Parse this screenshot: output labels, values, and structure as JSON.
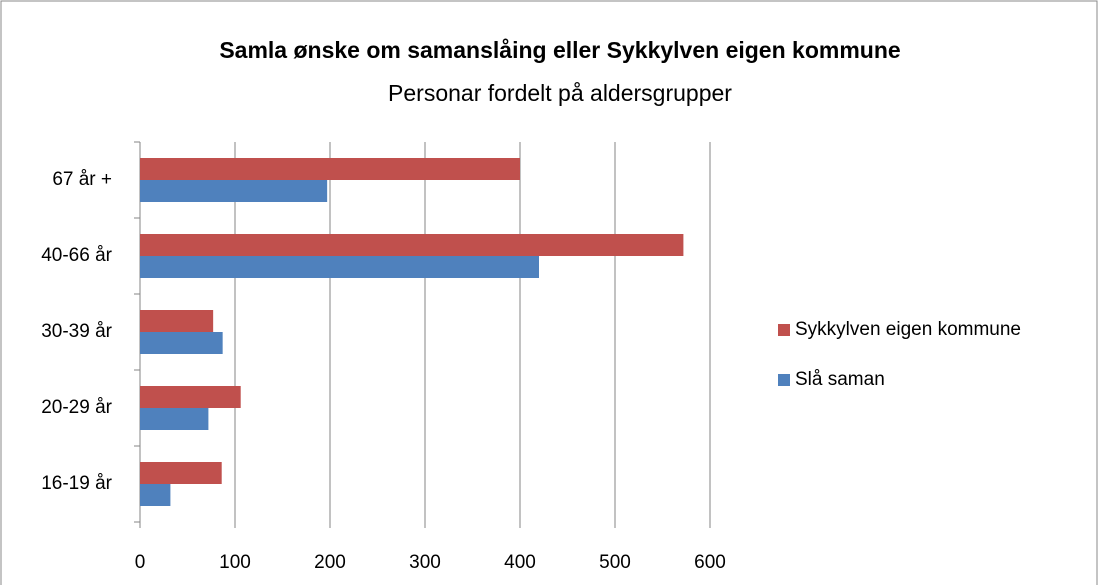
{
  "chart_data": {
    "type": "bar",
    "orientation": "horizontal",
    "title": "Samla ønske om samanslåing eller Sykkylven eigen kommune",
    "subtitle": "Personar fordelt på aldersgrupper",
    "categories": [
      "67 år +",
      "40-66 år",
      "30-39 år",
      "20-29 år",
      "16-19 år"
    ],
    "series": [
      {
        "name": "Sykkylven eigen kommune",
        "color": "#c0504d",
        "values": [
          400,
          572,
          77,
          106,
          86
        ]
      },
      {
        "name": "Slå saman",
        "color": "#4f81bd",
        "values": [
          197,
          420,
          87,
          72,
          32
        ]
      }
    ],
    "xlim": [
      0,
      600
    ],
    "xticks": [
      0,
      100,
      200,
      300,
      400,
      500,
      600
    ],
    "grid": true,
    "legend": "right"
  }
}
